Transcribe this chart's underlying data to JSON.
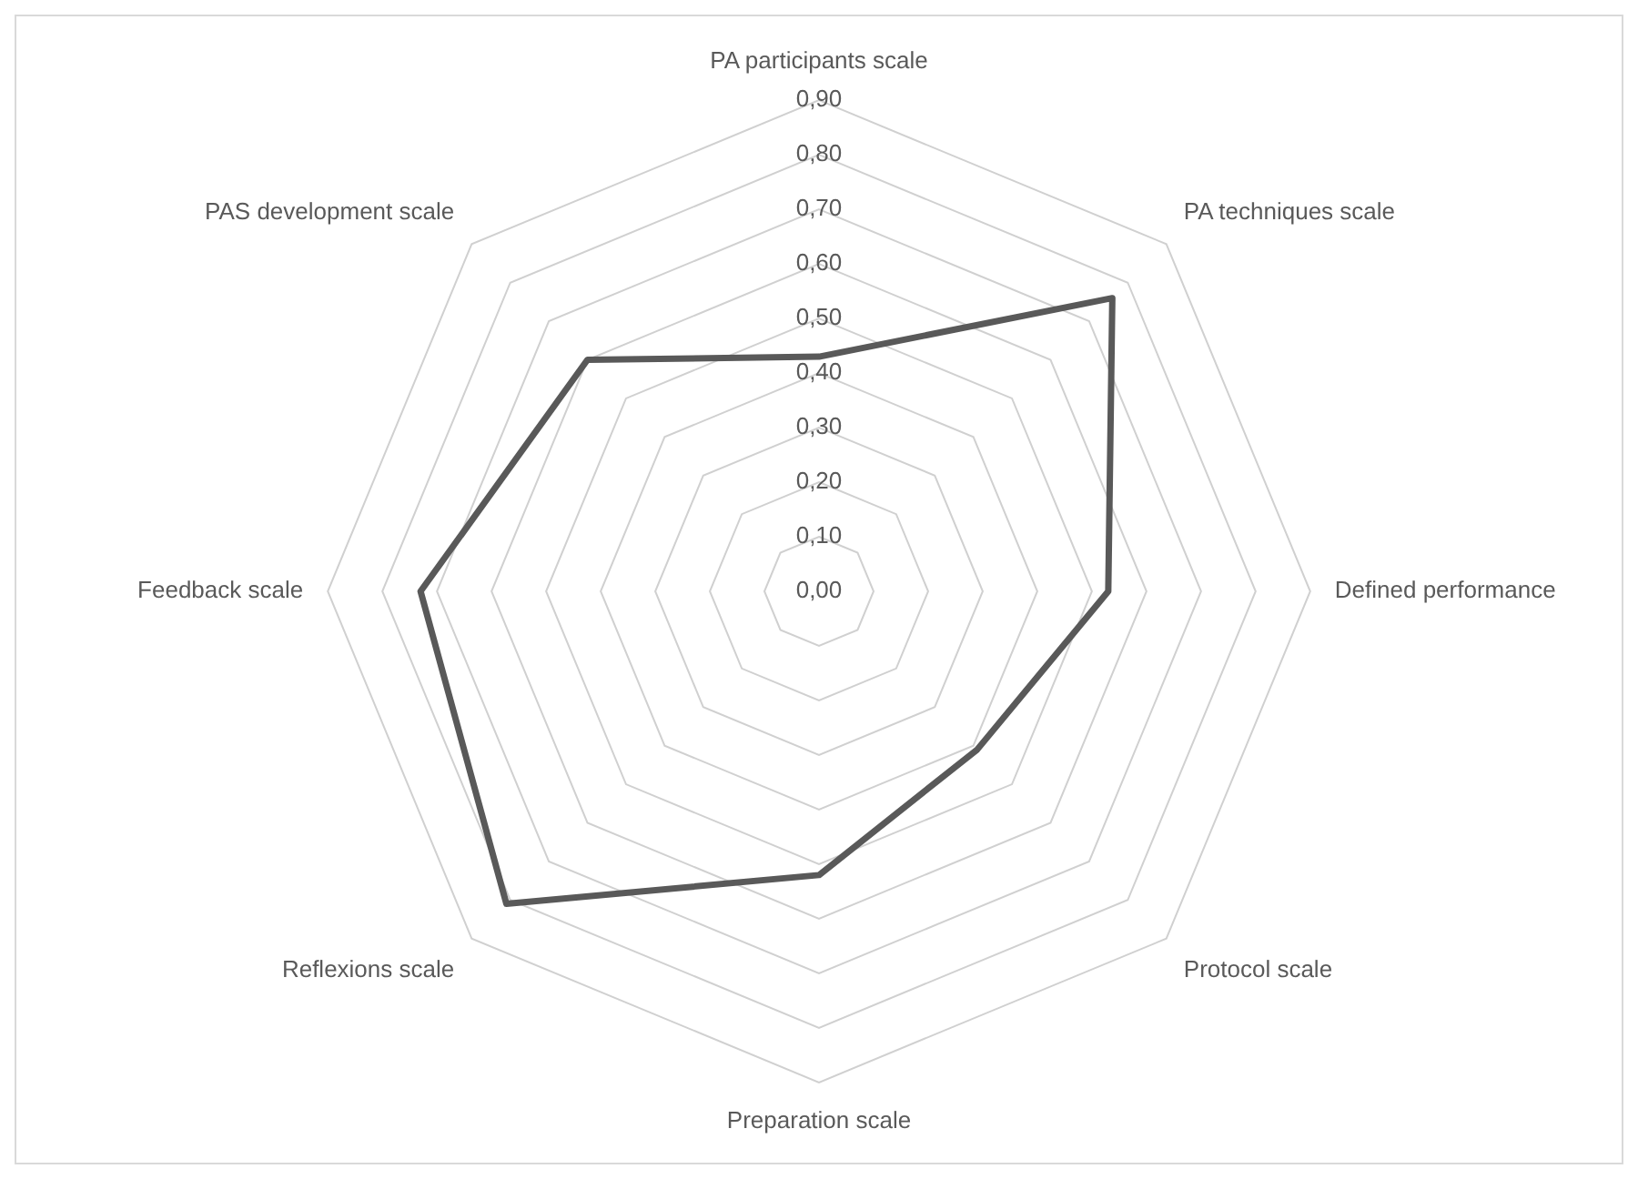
{
  "chart_data": {
    "type": "radar",
    "categories": [
      "PA participants scale",
      "PA techniques scale",
      "Defined performance",
      "Protocol scale",
      "Preparation scale",
      "Reflexions scale",
      "Feedback scale",
      "PAS development scale"
    ],
    "series": [
      {
        "color": "#595959",
        "values": [
          0.43,
          0.76,
          0.53,
          0.41,
          0.52,
          0.81,
          0.73,
          0.6
        ]
      }
    ],
    "ylim": [
      0,
      0.9
    ],
    "yticks": [
      {
        "value": 0,
        "label": "0,00"
      },
      {
        "value": 0.1,
        "label": "0,10"
      },
      {
        "value": 0.2,
        "label": "0,20"
      },
      {
        "value": 0.3,
        "label": "0,30"
      },
      {
        "value": 0.4,
        "label": "0,40"
      },
      {
        "value": 0.5,
        "label": "0,50"
      },
      {
        "value": 0.6,
        "label": "0,60"
      },
      {
        "value": 0.7,
        "label": "0,70"
      },
      {
        "value": 0.8,
        "label": "0,80"
      },
      {
        "value": 0.9,
        "label": "0,90"
      }
    ],
    "grid": true,
    "legend": false,
    "marker": "none",
    "line_style": "solid"
  }
}
